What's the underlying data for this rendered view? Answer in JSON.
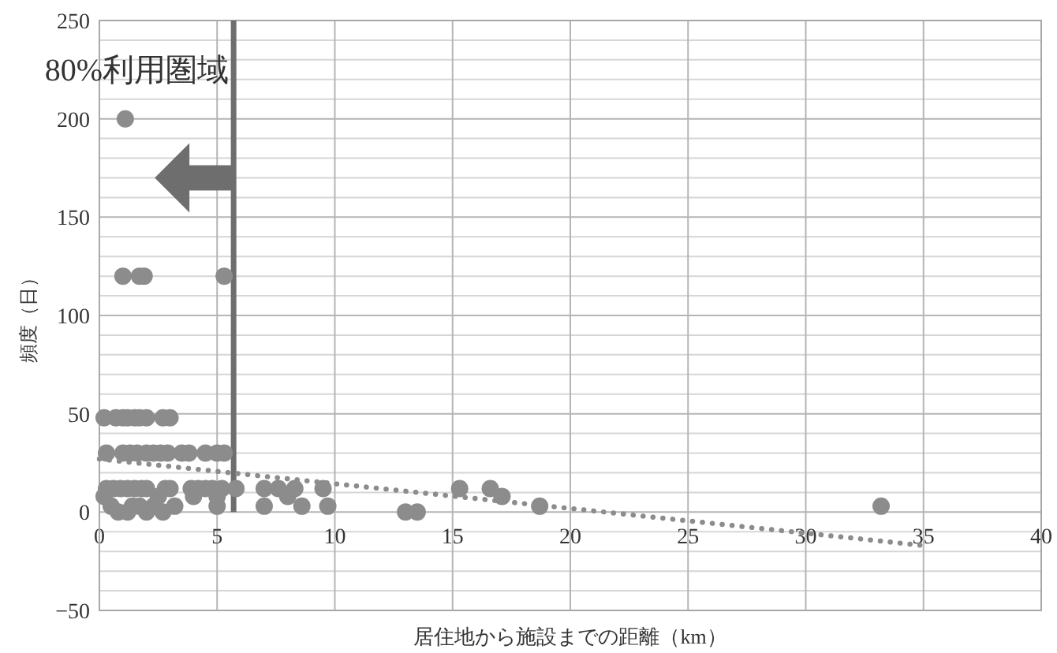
{
  "chart_data": {
    "type": "scatter",
    "xlabel": "居住地から施設までの距離（km）",
    "ylabel": "頻度（日）",
    "xlim": [
      0,
      40
    ],
    "ylim": [
      -50,
      250
    ],
    "xticks": [
      0,
      5,
      10,
      15,
      20,
      25,
      30,
      35,
      40
    ],
    "yticks": [
      -50,
      {
        "value": -40,
        "label": null
      },
      {
        "value": -30,
        "label": null
      },
      {
        "value": -20,
        "label": null
      },
      {
        "value": -10,
        "label": null
      },
      0,
      {
        "value": 10,
        "label": null
      },
      {
        "value": 20,
        "label": null
      },
      {
        "value": 30,
        "label": null
      },
      {
        "value": 40,
        "label": null
      },
      50,
      {
        "value": 60,
        "label": null
      },
      {
        "value": 70,
        "label": null
      },
      {
        "value": 80,
        "label": null
      },
      {
        "value": 90,
        "label": null
      },
      100,
      {
        "value": 110,
        "label": null
      },
      {
        "value": 120,
        "label": null
      },
      {
        "value": 130,
        "label": null
      },
      {
        "value": 140,
        "label": null
      },
      150,
      {
        "value": 160,
        "label": null
      },
      {
        "value": 170,
        "label": null
      },
      {
        "value": 180,
        "label": null
      },
      {
        "value": 190,
        "label": null
      },
      200,
      {
        "value": 210,
        "label": null
      },
      {
        "value": 220,
        "label": null
      },
      {
        "value": 230,
        "label": null
      },
      {
        "value": 240,
        "label": null
      },
      250
    ],
    "grid": true,
    "series": [
      {
        "color": "#8c8c8c",
        "marker": "circle",
        "x": [
          1.1,
          1.0,
          1.7,
          1.9,
          5.3,
          0.2,
          0.7,
          1.0,
          1.2,
          1.5,
          1.7,
          2.0,
          2.7,
          3.0,
          0.3,
          1.0,
          1.3,
          1.6,
          2.0,
          2.3,
          2.6,
          2.9,
          3.5,
          3.8,
          4.5,
          5.0,
          5.3,
          0.3,
          0.6,
          0.9,
          1.2,
          1.5,
          1.8,
          2.0,
          2.8,
          3.0,
          3.9,
          4.2,
          4.5,
          4.8,
          5.2,
          5.8,
          7.0,
          7.6,
          8.3,
          9.5,
          15.3,
          16.6,
          0.2,
          2.5,
          4.0,
          5.0,
          8.0,
          17.1,
          0.5,
          1.4,
          1.7,
          2.3,
          3.2,
          5.0,
          7.0,
          8.6,
          9.7,
          18.7,
          33.2,
          0.8,
          1.2,
          2.0,
          2.7,
          13.0,
          13.5
        ],
        "values": [
          200,
          120,
          120,
          120,
          120,
          48,
          48,
          48,
          48,
          48,
          48,
          48,
          48,
          48,
          30,
          30,
          30,
          30,
          30,
          30,
          30,
          30,
          30,
          30,
          30,
          30,
          30,
          12,
          12,
          12,
          12,
          12,
          12,
          12,
          12,
          12,
          12,
          12,
          12,
          12,
          12,
          12,
          12,
          12,
          12,
          12,
          12,
          12,
          8,
          8,
          8,
          8,
          8,
          8,
          3,
          3,
          3,
          3,
          3,
          3,
          3,
          3,
          3,
          3,
          3,
          0,
          0,
          0,
          0,
          0,
          0
        ]
      },
      {
        "type": "line",
        "color": "#8c8c8c",
        "marker": "none",
        "line_style": "dotted",
        "x": [
          0,
          35
        ],
        "values": [
          27,
          -17
        ]
      }
    ],
    "ref_lines": [
      {
        "axis": "x",
        "value": 5.7,
        "label": "80%利用圏域",
        "color": "#6e6e6e"
      }
    ]
  }
}
